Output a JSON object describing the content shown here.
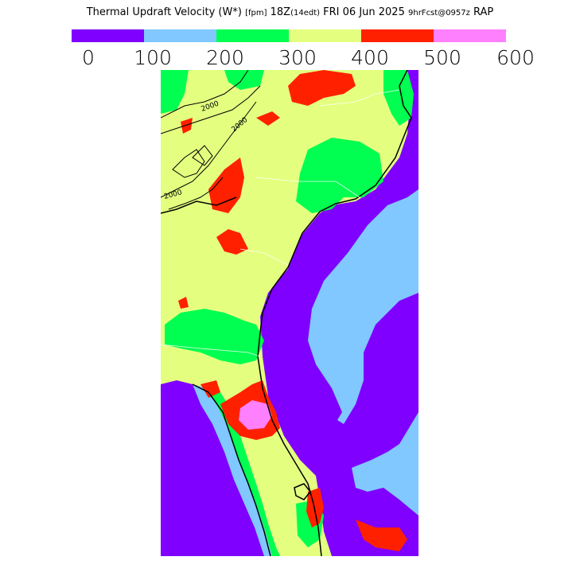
{
  "header": {
    "title_main": "Thermal Updraft Velocity (W*)",
    "title_units": "[fpm]",
    "title_time": "18Z",
    "title_local": "(14edt)",
    "title_date": "FRI 06 Jun 2025",
    "title_fcst": "9hrFcst@0957z",
    "title_model": "RAP"
  },
  "legend": {
    "colors": [
      "#7f00ff",
      "#80c8ff",
      "#00ff50",
      "#e4ff80",
      "#ff2000",
      "#ff80ff"
    ],
    "ticks": [
      "0",
      "100",
      "200",
      "300",
      "400",
      "500",
      "600"
    ]
  },
  "map": {
    "contour_labels": [
      "2000",
      "2000",
      "2000"
    ]
  }
}
